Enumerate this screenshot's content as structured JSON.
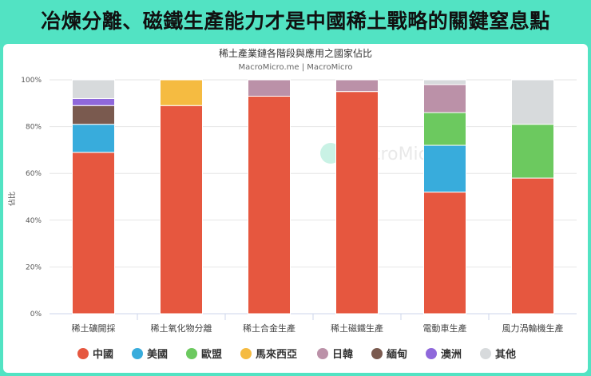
{
  "headline": "冶煉分離、磁鐵生產能力才是中國稀土戰略的關鍵窒息點",
  "watermark": "MacroMicro",
  "chart_data": {
    "type": "bar",
    "stacked": true,
    "title": "稀土產業鏈各階段與應用之國家佔比",
    "subtitle": "MacroMicro.me | MacroMicro",
    "xlabel": "",
    "ylabel": "佔比",
    "ylim": [
      0,
      100
    ],
    "yticks": [
      "0%",
      "20%",
      "40%",
      "60%",
      "80%",
      "100%"
    ],
    "grid": true,
    "legend_position": "bottom",
    "categories": [
      "稀土礦開採",
      "稀土氧化物分離",
      "稀土合金生產",
      "稀土磁鐵生產",
      "電動車生產",
      "風力渦輪機生產"
    ],
    "series": [
      {
        "name": "中國",
        "color": "#e6573f",
        "values": [
          69,
          89,
          93,
          95,
          52,
          58
        ]
      },
      {
        "name": "美國",
        "color": "#38acdc",
        "values": [
          12,
          0,
          0,
          0,
          20,
          0
        ]
      },
      {
        "name": "歐盟",
        "color": "#6cc95f",
        "values": [
          0,
          0,
          0,
          0,
          14,
          23
        ]
      },
      {
        "name": "馬來西亞",
        "color": "#f5bb41",
        "values": [
          0,
          11,
          0,
          0,
          0,
          0
        ]
      },
      {
        "name": "日韓",
        "color": "#bb91a8",
        "values": [
          0,
          0,
          7,
          5,
          12,
          0
        ]
      },
      {
        "name": "緬甸",
        "color": "#7a5a4f",
        "values": [
          8,
          0,
          0,
          0,
          0,
          0
        ]
      },
      {
        "name": "澳洲",
        "color": "#8f68db",
        "values": [
          3,
          0,
          0,
          0,
          0,
          0
        ]
      },
      {
        "name": "其他",
        "color": "#d7dadc",
        "values": [
          8,
          0,
          0,
          0,
          2,
          19
        ]
      }
    ]
  }
}
